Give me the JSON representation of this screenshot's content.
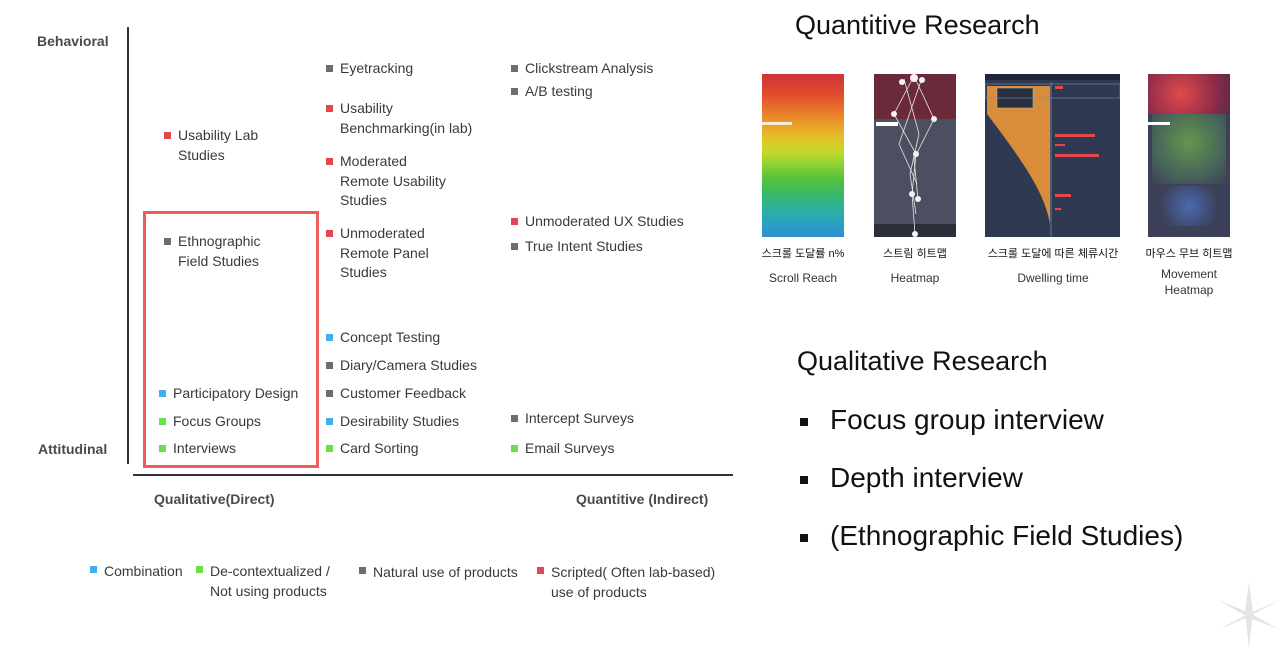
{
  "chart": {
    "y_axis": {
      "top": "Behavioral",
      "bottom": "Attitudinal"
    },
    "x_axis": {
      "left": "Qualitative(Direct)",
      "right": "Quantitive (Indirect)"
    },
    "methods": [
      {
        "label": "Eyetracking",
        "color": "gray"
      },
      {
        "label": "Clickstream Analysis",
        "color": "gray"
      },
      {
        "label": "A/B testing",
        "color": "gray"
      },
      {
        "label": "Usability\nBenchmarking(in lab)",
        "color": "red"
      },
      {
        "label": "Usability Lab\nStudies",
        "color": "red"
      },
      {
        "label": "Moderated\nRemote Usability\nStudies",
        "color": "red"
      },
      {
        "label": "Unmoderated UX Studies",
        "color": "red"
      },
      {
        "label": "True Intent Studies",
        "color": "gray"
      },
      {
        "label": "Ethnographic\nField Studies",
        "color": "gray"
      },
      {
        "label": "Unmoderated\nRemote Panel\nStudies",
        "color": "red"
      },
      {
        "label": "Concept Testing",
        "color": "blue"
      },
      {
        "label": "Diary/Camera Studies",
        "color": "gray"
      },
      {
        "label": "Participatory Design",
        "color": "blue"
      },
      {
        "label": "Customer Feedback",
        "color": "gray"
      },
      {
        "label": "Focus Groups",
        "color": "green"
      },
      {
        "label": "Desirability Studies",
        "color": "blue"
      },
      {
        "label": "Intercept Surveys",
        "color": "gray"
      },
      {
        "label": "Interviews",
        "color": "green"
      },
      {
        "label": "Card Sorting",
        "color": "green"
      },
      {
        "label": "Email Surveys",
        "color": "green"
      }
    ],
    "legend": [
      {
        "label": "Combination",
        "color": "blue"
      },
      {
        "label": "De-contextualized /\nNot using products",
        "color": "green"
      },
      {
        "label": "Natural use of products",
        "color": "gray"
      },
      {
        "label": "Scripted( Often lab-based)\nuse of products",
        "color": "red"
      }
    ],
    "colors": {
      "red": "#e4484f",
      "gray": "#6d6d6d",
      "blue": "#3fb1e8",
      "green": "#69e04a",
      "highlight": "#ef5a5a"
    }
  },
  "quant": {
    "title": "Quantitive Research",
    "thumbs": [
      {
        "ko": "스크롤 도달률 n%",
        "en": "Scroll Reach"
      },
      {
        "ko": "스트림 히트맵",
        "en": "Heatmap"
      },
      {
        "ko": "스크롤 도달에 따른 체류시간",
        "en": "Dwelling time"
      },
      {
        "ko": "마우스 무브 히트맵",
        "en": "Movement\nHeatmap"
      }
    ]
  },
  "qual": {
    "title": "Qualitative Research",
    "items": [
      "Focus group interview",
      "Depth interview",
      "(Ethnographic Field Studies)"
    ]
  }
}
